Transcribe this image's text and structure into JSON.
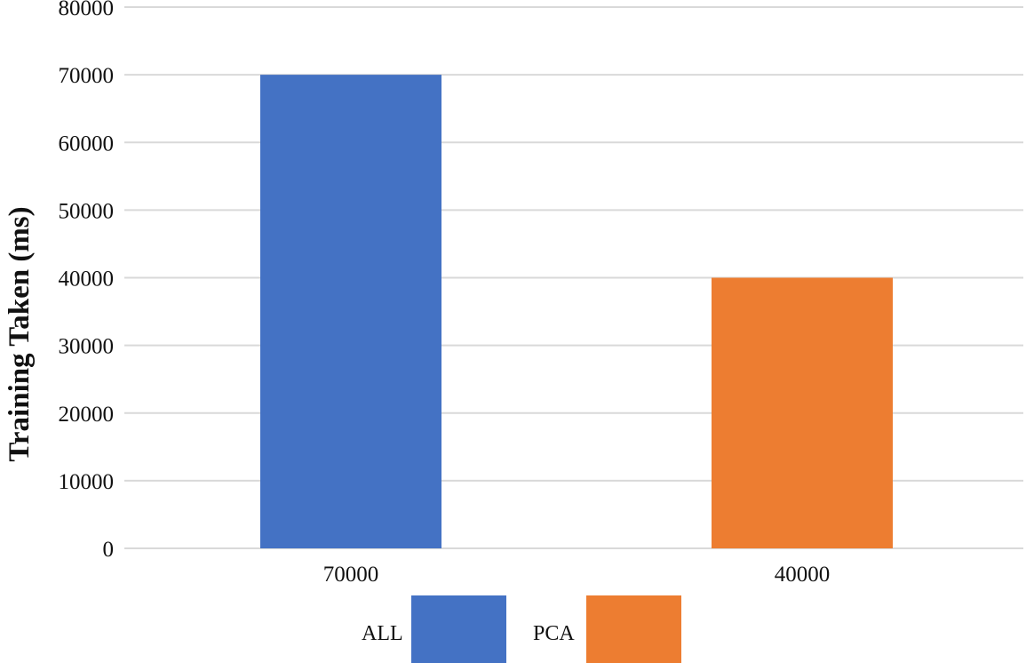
{
  "chart_data": {
    "type": "bar",
    "title": "",
    "xlabel": "",
    "ylabel": "Training Taken (ms)",
    "ylim": [
      0,
      80000
    ],
    "yticks": [
      "0",
      "10000",
      "20000",
      "30000",
      "40000",
      "50000",
      "60000",
      "70000",
      "80000"
    ],
    "categories": [
      "70000",
      "40000"
    ],
    "values": [
      70000,
      40000
    ],
    "series": [
      {
        "name": "ALL",
        "value": 70000,
        "color": "#4472c4"
      },
      {
        "name": "PCA",
        "value": 40000,
        "color": "#ed7d31"
      }
    ],
    "grid": true,
    "gridline_color": "#d9d9d9",
    "legend": {
      "placement": "bottom",
      "entries": [
        "ALL",
        "PCA"
      ]
    }
  }
}
